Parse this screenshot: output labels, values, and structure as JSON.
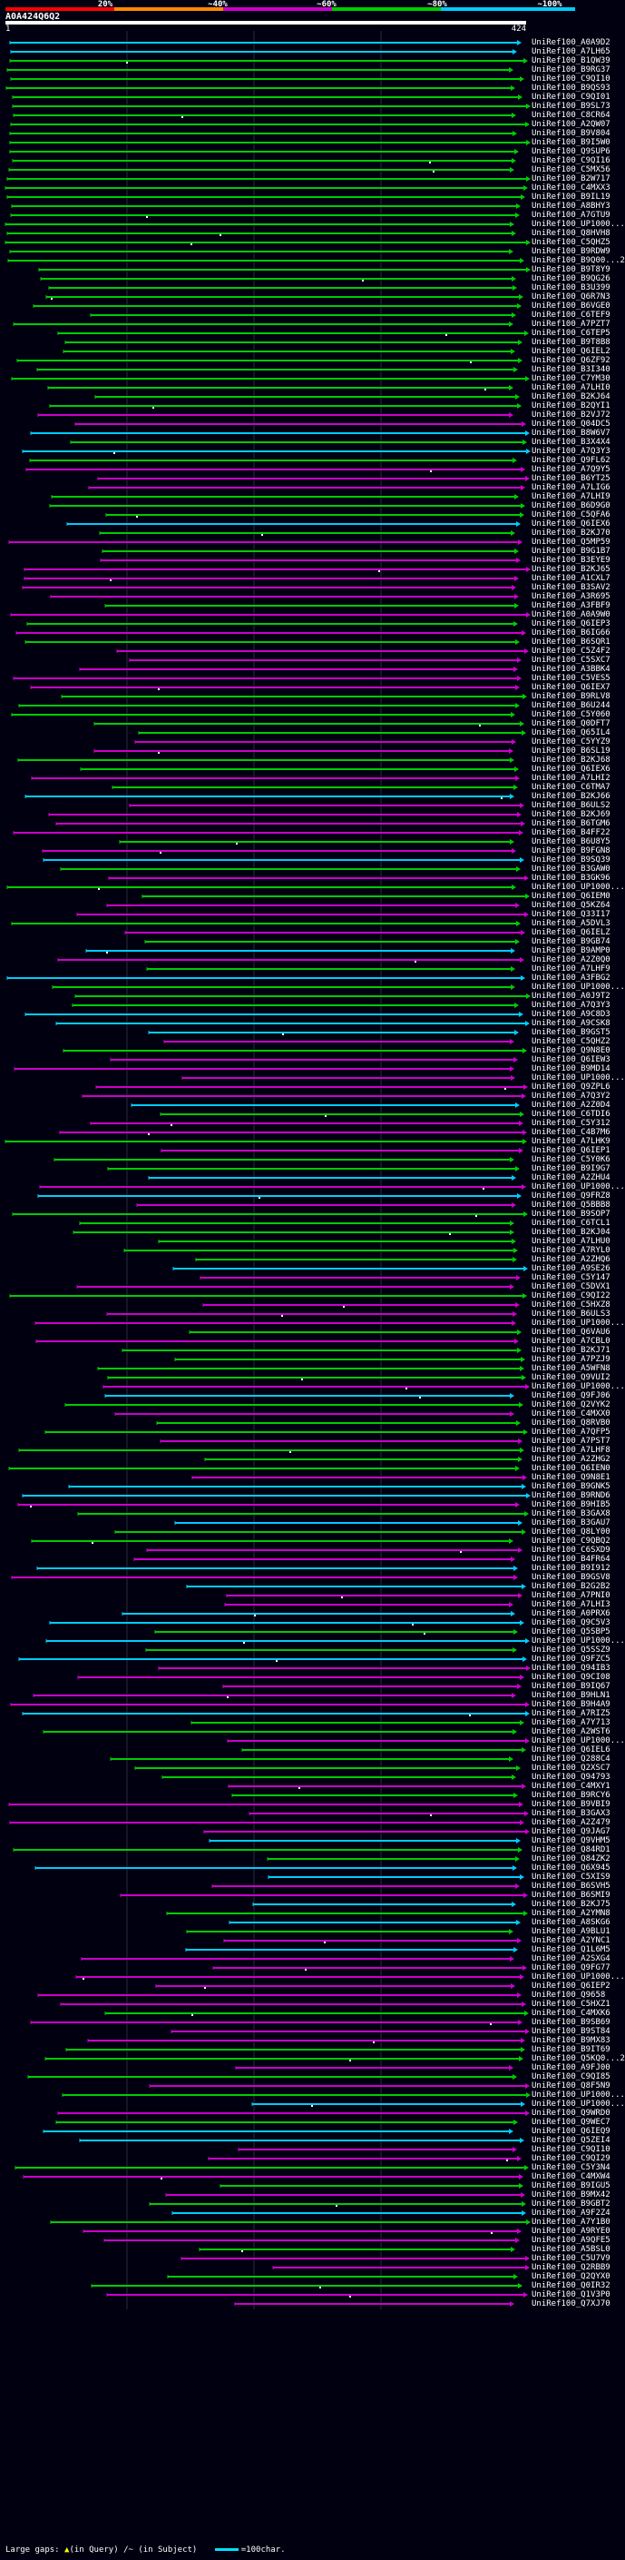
{
  "legend": {
    "ticks": [
      "20%",
      "~40%",
      "~60%",
      "~80%",
      "~100%"
    ],
    "colors": [
      "#ff0000",
      "#ff8800",
      "#cc00cc",
      "#00cc00",
      "#00ccff"
    ]
  },
  "query": {
    "id": "A0A424Q6Q2",
    "start_label": "1",
    "end_label": "424"
  },
  "hits": [
    "UniRef100_A0A9D2",
    "UniRef100_A7LH65",
    "UniRef100_B1QW39",
    "UniRef100_B9RG37",
    "UniRef100_C9QI10",
    "UniRef100_B9QS93",
    "UniRef100_C9QI01",
    "UniRef100_B9SL73",
    "UniRef100_C8CR64",
    "UniRef100_A2QW07",
    "UniRef100_B9V804",
    "UniRef100_B9I5W0",
    "UniRef100_Q9SUP6",
    "UniRef100_C9QI16",
    "UniRef100_C5MX56",
    "UniRef100_B2W717",
    "UniRef100_C4MXX3",
    "UniRef100_B9IL19",
    "UniRef100_A8BHY3",
    "UniRef100_A7GTU9",
    "UniRef100_UP1000...",
    "UniRef100_Q8HVH8",
    "UniRef100_C5QHZ5",
    "UniRef100_B9RDW9",
    "UniRef100_B9Q00...2",
    "UniRef100_B9T8Y9",
    "UniRef100_B9QG26",
    "UniRef100_B3U399",
    "UniRef100_Q6R7N3",
    "UniRef100_B6VGE0",
    "UniRef100_C6TEF9",
    "UniRef100_A7PZT7",
    "UniRef100_C6TEP5",
    "UniRef100_B9T8B8",
    "UniRef100_Q6IEL2",
    "UniRef100_Q6ZF92",
    "UniRef100_B3I340",
    "UniRef100_C7YM30",
    "UniRef100_A7LHI0",
    "UniRef100_B2KJ64",
    "UniRef100_B2QYI1",
    "UniRef100_B2VJ72",
    "UniRef100_Q04DC5",
    "UniRef100_B8W6V7",
    "UniRef100_B3X4X4",
    "UniRef100_A7Q3Y3",
    "UniRef100_Q9FL62",
    "UniRef100_A7Q9Y5",
    "UniRef100_B6YT25",
    "UniRef100_A7LIG6",
    "UniRef100_A7LHI9",
    "UniRef100_B6D9G0",
    "UniRef100_C5QFA6",
    "UniRef100_Q6IEX6",
    "UniRef100_B2KJ70",
    "UniRef100_Q5MP59",
    "UniRef100_B9G1B7",
    "UniRef100_B3EYE9",
    "UniRef100_B2KJ65",
    "UniRef100_A1CXL7",
    "UniRef100_B3SAV2",
    "UniRef100_A3R695",
    "UniRef100_A3FBF9",
    "UniRef100_A0A9W0",
    "UniRef100_Q6IEP3",
    "UniRef100_B6IG66",
    "UniRef100_B6SQR1",
    "UniRef100_C5Z4F2",
    "UniRef100_C5SXC7",
    "UniRef100_A3BBK4",
    "UniRef100_C5VES5",
    "UniRef100_Q6IEX7",
    "UniRef100_B9RLV8",
    "UniRef100_B6U244",
    "UniRef100_C5Y060",
    "UniRef100_Q0DFT7",
    "UniRef100_Q65IL4",
    "UniRef100_C5YYZ9",
    "UniRef100_B6SL19",
    "UniRef100_B2KJ68",
    "UniRef100_Q6IEX6",
    "UniRef100_A7LHI2",
    "UniRef100_C6TMA7",
    "UniRef100_B2KJ66",
    "UniRef100_B6ULS2",
    "UniRef100_B2KJ69",
    "UniRef100_B6TGM6",
    "UniRef100_B4FF22",
    "UniRef100_B6U8Y5",
    "UniRef100_B9FGN8",
    "UniRef100_B9SQ39",
    "UniRef100_B3GAW0",
    "UniRef100_B3GK96",
    "UniRef100_UP1000...",
    "UniRef100_Q6IEM0",
    "UniRef100_Q5KZ64",
    "UniRef100_Q33I17",
    "UniRef100_A5DVL3",
    "UniRef100_Q6IELZ",
    "UniRef100_B9GB74",
    "UniRef100_B9AMP0",
    "UniRef100_A2Z0Q0",
    "UniRef100_A7LHF9",
    "UniRef100_A3FBG2",
    "UniRef100_UP1000...",
    "UniRef100_A0J9T2",
    "UniRef100_A7Q3Y3",
    "UniRef100_A9C8D3",
    "UniRef100_A9CSK8",
    "UniRef100_B9GST5",
    "UniRef100_C5QHZ2",
    "UniRef100_Q9N8E0",
    "UniRef100_Q6IEW3",
    "UniRef100_B9MD14",
    "UniRef100_UP1000...",
    "UniRef100_Q9ZPL6",
    "UniRef100_A7Q3Y2",
    "UniRef100_A2Z0D4",
    "UniRef100_C6TDI6",
    "UniRef100_C5Y312",
    "UniRef100_C4B7M6",
    "UniRef100_A7LHK9",
    "UniRef100_Q6IEP1",
    "UniRef100_C5Y0K6",
    "UniRef100_B9I9G7",
    "UniRef100_A2ZHU4",
    "UniRef100_UP1000...",
    "UniRef100_Q9FRZ8",
    "UniRef100_Q5BBB8",
    "UniRef100_B9SOP7",
    "UniRef100_C6TCL1",
    "UniRef100_B2KJ04",
    "UniRef100_A7LHU0",
    "UniRef100_A7RYL0",
    "UniRef100_A2ZHQ6",
    "UniRef100_A9SE26",
    "UniRef100_C5Y147",
    "UniRef100_C5DVX1",
    "UniRef100_C9QI22",
    "UniRef100_C5HXZ8",
    "UniRef100_B6ULS3",
    "UniRef100_UP1000...",
    "UniRef100_Q6VAU6",
    "UniRef100_A7CBL0",
    "UniRef100_B2KJ71",
    "UniRef100_A7PZJ9",
    "UniRef100_A5WFN8",
    "UniRef100_Q9VUI2",
    "UniRef100_UP1000...",
    "UniRef100_Q9FJ06",
    "UniRef100_Q2VYK2",
    "UniRef100_C4MXX0",
    "UniRef100_Q8RVB0",
    "UniRef100_A7QFP5",
    "UniRef100_A7PST7",
    "UniRef100_A7LHF8",
    "UniRef100_A2ZHG2",
    "UniRef100_Q6IEN0",
    "UniRef100_Q9N8E1",
    "UniRef100_B9GNK5",
    "UniRef100_B9RND6",
    "UniRef100_B9HIB5",
    "UniRef100_B3GAX8",
    "UniRef100_B3GAU7",
    "UniRef100_Q8LY00",
    "UniRef100_C9QBQ2",
    "UniRef100_C6SXD9",
    "UniRef100_B4FR64",
    "UniRef100_B9I912",
    "UniRef100_B9GSV8",
    "UniRef100_B2G2B2",
    "UniRef100_A7PNI0",
    "UniRef100_A7LHI3",
    "UniRef100_A0PRX6",
    "UniRef100_Q9C5V3",
    "UniRef100_Q5SBP5",
    "UniRef100_UP1000...",
    "UniRef100_Q5SSZ9",
    "UniRef100_Q9FZC5",
    "UniRef100_Q94IB3",
    "UniRef100_Q9CI08",
    "UniRef100_B9IQ67",
    "UniRef100_B9HLN1",
    "UniRef100_B9H4A9",
    "UniRef100_A7RIZ5",
    "UniRef100_A7Y713",
    "UniRef100_A2WST6",
    "UniRef100_UP1000...",
    "UniRef100_Q6IEL6",
    "UniRef100_Q288C4",
    "UniRef100_Q2XSC7",
    "UniRef100_Q94793",
    "UniRef100_C4MXY1",
    "UniRef100_B9RCY6",
    "UniRef100_B9VBI9",
    "UniRef100_B3GAX3",
    "UniRef100_A2Z479",
    "UniRef100_Q9JAG7",
    "UniRef100_Q9VHM5",
    "UniRef100_Q84RD1",
    "UniRef100_Q84ZK2",
    "UniRef100_Q6X945",
    "UniRef100_C5XIS9",
    "UniRef100_B6SVH5",
    "UniRef100_B6SMI9",
    "UniRef100_B2KJ75",
    "UniRef100_A2YMN8",
    "UniRef100_A8SKG6",
    "UniRef100_A9BLU1",
    "UniRef100_A2YNC1",
    "UniRef100_Q1L6M5",
    "UniRef100_A2SXG4",
    "UniRef100_Q9FG77",
    "UniRef100_UP1000...",
    "UniRef100_Q6IEP2",
    "UniRef100_Q9658",
    "UniRef100_C5HXZ1",
    "UniRef100_C4MXK6",
    "UniRef100_B9SB69",
    "UniRef100_B9ST84",
    "UniRef100_B9MX83",
    "UniRef100_B9IT69",
    "UniRef100_Q5KQ0...2",
    "UniRef100_A9FJ00",
    "UniRef100_C9QI85",
    "UniRef100_Q8F5N9",
    "UniRef100_UP1000...",
    "UniRef100_UP1000...",
    "UniRef100_Q9WRD0",
    "UniRef100_Q9WEC7",
    "UniRef100_Q6IEQ9",
    "UniRef100_Q5ZEI4",
    "UniRef100_C9QI10",
    "UniRef100_C9QI29",
    "UniRef100_C5Y3N4",
    "UniRef100_C4MXW4",
    "UniRef100_B9IGU5",
    "UniRef100_B9MX42",
    "UniRef100_B9GBT2",
    "UniRef100_A9F2Z4",
    "UniRef100_A7Y1B0",
    "UniRef100_A9RYE0",
    "UniRef100_A9QFE5",
    "UniRef100_A5BSL0",
    "UniRef100_C5U7V9",
    "UniRef100_Q2RBB9",
    "UniRef100_Q2QYX0",
    "UniRef100_Q0IR32",
    "UniRef100_Q1V3P0",
    "UniRef100_Q7XJ70"
  ],
  "footer": {
    "label": "Large gaps:",
    "query_text": "(in Query)",
    "subject_text": "/~ (in Subject)",
    "scale_text": "=100char."
  }
}
